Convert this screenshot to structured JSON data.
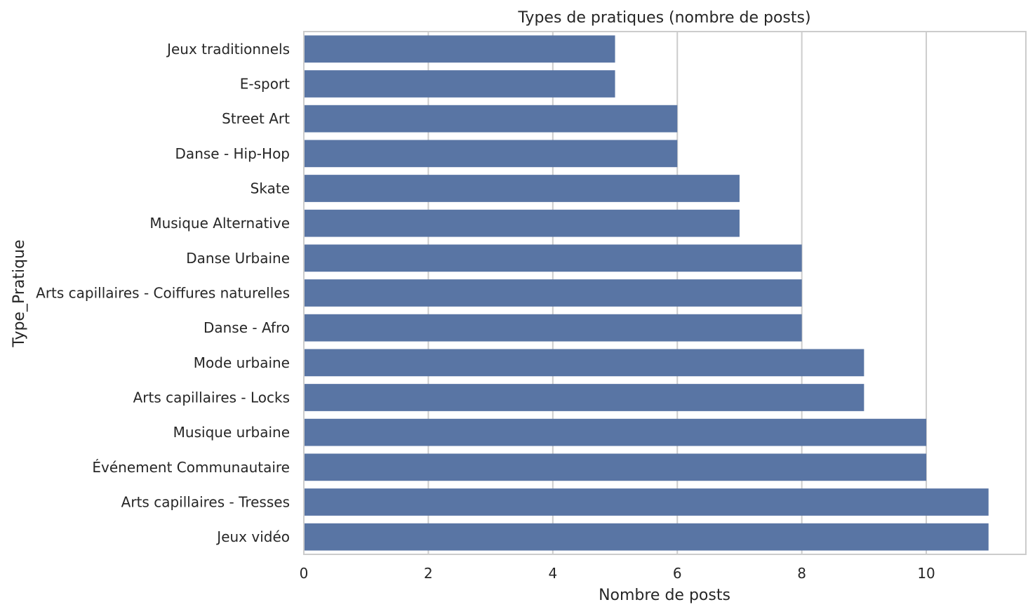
{
  "chart_data": {
    "type": "bar",
    "orientation": "horizontal",
    "title": "Types de pratiques (nombre de posts)",
    "xlabel": "Nombre de posts",
    "ylabel": "Type_Pratique",
    "categories": [
      "Jeux traditionnels",
      "E-sport",
      "Street Art",
      "Danse - Hip-Hop",
      "Skate",
      "Musique Alternative",
      "Danse Urbaine",
      "Arts capillaires - Coiffures naturelles",
      "Danse - Afro",
      "Mode urbaine",
      "Arts capillaires - Locks",
      "Musique urbaine",
      "Événement Communautaire",
      "Arts capillaires - Tresses",
      "Jeux vidéo"
    ],
    "values": [
      5,
      5,
      6,
      6,
      7,
      7,
      8,
      8,
      8,
      9,
      9,
      10,
      10,
      11,
      11
    ],
    "xlim": [
      0,
      11.6
    ],
    "xticks": [
      0,
      2,
      4,
      6,
      8,
      10
    ],
    "grid": true,
    "bar_color": "#5975a4",
    "grid_color": "#cccccc",
    "spine_color": "#cccccc"
  }
}
